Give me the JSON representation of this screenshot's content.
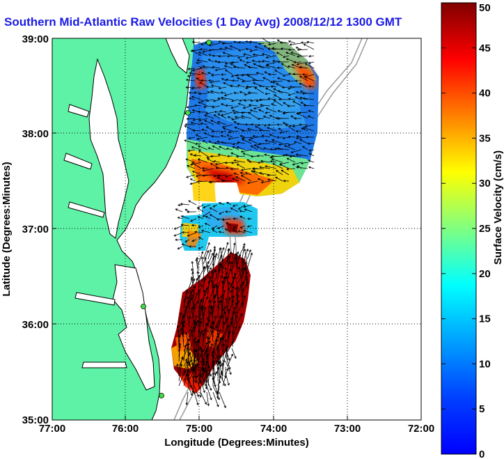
{
  "title": "Southern Mid-Atlantic Raw Velocities (1 Day Avg) 2008/12/12 1300 GMT",
  "axes": {
    "xlabel": "Longitude (Degrees:Minutes)",
    "ylabel": "Latitude (Degrees:Minutes)",
    "x_ticks": [
      "77:00",
      "76:00",
      "75:00",
      "74:00",
      "73:00",
      "72:00"
    ],
    "y_ticks": [
      "39:00",
      "38:00",
      "37:00",
      "36:00",
      "35:00"
    ],
    "xlim": [
      -77,
      -72
    ],
    "ylim": [
      35,
      39
    ],
    "grid": "dotted"
  },
  "colorbar": {
    "label": "Surface Velocity (cm/s)",
    "range": [
      0,
      50
    ],
    "ticks": [
      "50",
      "45",
      "40",
      "35",
      "30",
      "25",
      "20",
      "15",
      "10",
      "5",
      "0"
    ],
    "colormap": "jet"
  },
  "colors": {
    "title": "#1a1ae6",
    "land": "#5ef2a6",
    "coastline": "#000000",
    "bathymetry": "#999999",
    "station": "#40e040"
  }
}
